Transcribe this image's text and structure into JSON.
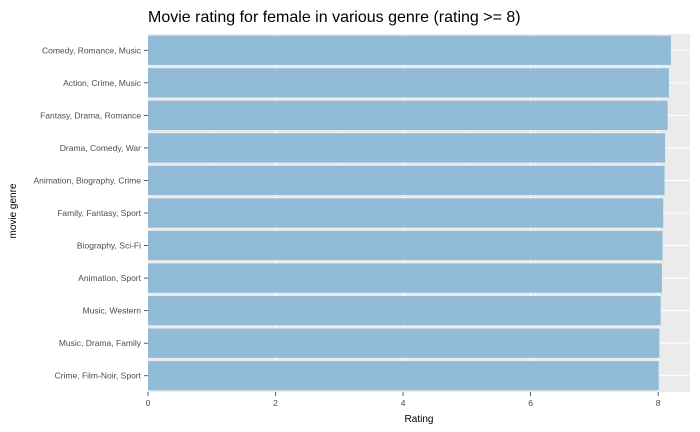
{
  "chart_data": {
    "type": "bar",
    "orientation": "horizontal",
    "title": "Movie rating for female in various genre (rating >= 8)",
    "xlabel": "Rating",
    "ylabel": "movie genre",
    "xlim": [
      0,
      8.5
    ],
    "xticks": [
      "0",
      "2",
      "4",
      "6",
      "8"
    ],
    "grid": true,
    "bar_color": "#92bbd8",
    "panel_color": "#ebebeb",
    "categories": [
      "Comedy, Romance, Music",
      "Action, Crime, Music",
      "Fantasy, Drama, Romance",
      "Drama, Comedy, War",
      "Animation, Biography, Crime",
      "Family, Fantasy, Sport",
      "Biography, Sci-Fi",
      "Animation, Sport",
      "Music, Western",
      "Music, Drama, Family",
      "Crime, Film-Noir, Sport"
    ],
    "values": [
      8.2,
      8.17,
      8.15,
      8.11,
      8.1,
      8.08,
      8.07,
      8.06,
      8.04,
      8.02,
      8.01
    ]
  }
}
